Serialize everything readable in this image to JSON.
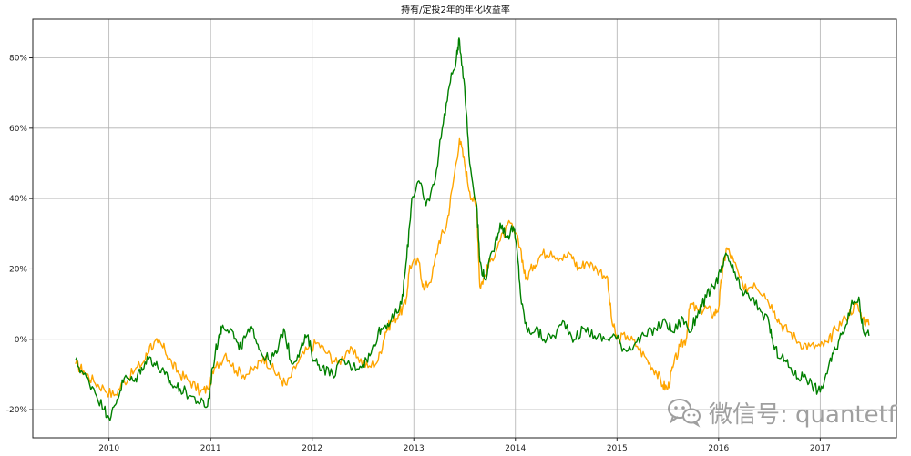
{
  "chart_data": {
    "type": "line",
    "title": "持有/定投2年的年化收益率",
    "xlabel": "",
    "ylabel": "",
    "xlim": [
      2009.25,
      2017.75
    ],
    "ylim": [
      -28,
      91
    ],
    "x_ticks": [
      2010,
      2011,
      2012,
      2013,
      2014,
      2015,
      2016,
      2017
    ],
    "x_tick_labels": [
      "2010",
      "2011",
      "2012",
      "2013",
      "2014",
      "2015",
      "2016",
      "2017"
    ],
    "y_ticks": [
      -20,
      0,
      20,
      40,
      60,
      80
    ],
    "y_tick_labels": [
      "-20%",
      "0%",
      "20%",
      "40%",
      "60%",
      "80%"
    ],
    "grid": true,
    "legend": "none",
    "series": [
      {
        "color": "#ffa500",
        "points": [
          [
            2009.67,
            -7
          ],
          [
            2009.75,
            -9
          ],
          [
            2009.85,
            -12
          ],
          [
            2009.95,
            -14
          ],
          [
            2010.05,
            -16
          ],
          [
            2010.15,
            -12
          ],
          [
            2010.25,
            -9
          ],
          [
            2010.35,
            -6
          ],
          [
            2010.4,
            -2
          ],
          [
            2010.48,
            -1
          ],
          [
            2010.55,
            -3
          ],
          [
            2010.62,
            -7
          ],
          [
            2010.7,
            -10
          ],
          [
            2010.8,
            -12
          ],
          [
            2010.9,
            -15
          ],
          [
            2010.97,
            -14
          ],
          [
            2011.05,
            -8
          ],
          [
            2011.15,
            -4
          ],
          [
            2011.25,
            -9
          ],
          [
            2011.35,
            -10
          ],
          [
            2011.45,
            -8
          ],
          [
            2011.52,
            -5
          ],
          [
            2011.6,
            -8
          ],
          [
            2011.68,
            -11
          ],
          [
            2011.75,
            -13
          ],
          [
            2011.85,
            -7
          ],
          [
            2011.95,
            -3
          ],
          [
            2012.05,
            -1
          ],
          [
            2012.15,
            -4
          ],
          [
            2012.25,
            -7
          ],
          [
            2012.35,
            -3
          ],
          [
            2012.45,
            -5
          ],
          [
            2012.55,
            -8
          ],
          [
            2012.65,
            -6
          ],
          [
            2012.72,
            2
          ],
          [
            2012.78,
            5
          ],
          [
            2012.85,
            7
          ],
          [
            2012.92,
            10
          ],
          [
            2012.96,
            21
          ],
          [
            2013.05,
            22
          ],
          [
            2013.1,
            14
          ],
          [
            2013.18,
            18
          ],
          [
            2013.25,
            28
          ],
          [
            2013.32,
            32
          ],
          [
            2013.38,
            43
          ],
          [
            2013.45,
            57
          ],
          [
            2013.5,
            50
          ],
          [
            2013.55,
            42
          ],
          [
            2013.62,
            37
          ],
          [
            2013.65,
            15
          ],
          [
            2013.7,
            18
          ],
          [
            2013.75,
            22
          ],
          [
            2013.85,
            28
          ],
          [
            2013.95,
            33
          ],
          [
            2014.05,
            26
          ],
          [
            2014.1,
            17
          ],
          [
            2014.18,
            21
          ],
          [
            2014.25,
            24
          ],
          [
            2014.35,
            25
          ],
          [
            2014.45,
            23
          ],
          [
            2014.55,
            24
          ],
          [
            2014.62,
            20
          ],
          [
            2014.7,
            22
          ],
          [
            2014.8,
            20
          ],
          [
            2014.9,
            18
          ],
          [
            2014.95,
            5
          ],
          [
            2015.0,
            0
          ],
          [
            2015.1,
            1
          ],
          [
            2015.2,
            -2
          ],
          [
            2015.3,
            -6
          ],
          [
            2015.38,
            -9
          ],
          [
            2015.45,
            -13
          ],
          [
            2015.5,
            -14
          ],
          [
            2015.55,
            -8
          ],
          [
            2015.62,
            -2
          ],
          [
            2015.68,
            0
          ],
          [
            2015.72,
            10
          ],
          [
            2015.8,
            8
          ],
          [
            2015.88,
            9
          ],
          [
            2015.95,
            7
          ],
          [
            2016.0,
            9
          ],
          [
            2016.04,
            20
          ],
          [
            2016.08,
            26
          ],
          [
            2016.15,
            22
          ],
          [
            2016.25,
            14
          ],
          [
            2016.35,
            16
          ],
          [
            2016.45,
            13
          ],
          [
            2016.55,
            8
          ],
          [
            2016.62,
            4
          ],
          [
            2016.7,
            2
          ],
          [
            2016.8,
            -1
          ],
          [
            2016.9,
            -2
          ],
          [
            2017.0,
            -2
          ],
          [
            2017.08,
            -1
          ],
          [
            2017.15,
            3
          ],
          [
            2017.25,
            6
          ],
          [
            2017.35,
            10
          ],
          [
            2017.42,
            6
          ],
          [
            2017.48,
            4
          ]
        ]
      },
      {
        "color": "#008000",
        "points": [
          [
            2009.67,
            -6
          ],
          [
            2009.75,
            -10
          ],
          [
            2009.85,
            -14
          ],
          [
            2009.95,
            -20
          ],
          [
            2010.02,
            -22
          ],
          [
            2010.08,
            -17
          ],
          [
            2010.15,
            -11
          ],
          [
            2010.25,
            -12
          ],
          [
            2010.32,
            -8
          ],
          [
            2010.4,
            -5
          ],
          [
            2010.48,
            -8
          ],
          [
            2010.55,
            -10
          ],
          [
            2010.62,
            -13
          ],
          [
            2010.7,
            -14
          ],
          [
            2010.8,
            -16
          ],
          [
            2010.9,
            -18
          ],
          [
            2010.97,
            -19
          ],
          [
            2011.02,
            -8
          ],
          [
            2011.08,
            1
          ],
          [
            2011.12,
            4
          ],
          [
            2011.2,
            3
          ],
          [
            2011.28,
            -3
          ],
          [
            2011.35,
            1
          ],
          [
            2011.42,
            3
          ],
          [
            2011.5,
            -4
          ],
          [
            2011.58,
            -6
          ],
          [
            2011.65,
            -4
          ],
          [
            2011.72,
            3
          ],
          [
            2011.8,
            -7
          ],
          [
            2011.88,
            -3
          ],
          [
            2011.95,
            1
          ],
          [
            2012.02,
            -6
          ],
          [
            2012.1,
            -8
          ],
          [
            2012.2,
            -10
          ],
          [
            2012.3,
            -6
          ],
          [
            2012.4,
            -8
          ],
          [
            2012.5,
            -7
          ],
          [
            2012.58,
            -4
          ],
          [
            2012.65,
            2
          ],
          [
            2012.72,
            4
          ],
          [
            2012.8,
            6
          ],
          [
            2012.88,
            10
          ],
          [
            2012.93,
            23
          ],
          [
            2012.98,
            40
          ],
          [
            2013.05,
            45
          ],
          [
            2013.12,
            38
          ],
          [
            2013.2,
            44
          ],
          [
            2013.28,
            60
          ],
          [
            2013.35,
            72
          ],
          [
            2013.42,
            80
          ],
          [
            2013.45,
            85
          ],
          [
            2013.5,
            72
          ],
          [
            2013.55,
            50
          ],
          [
            2013.62,
            38
          ],
          [
            2013.65,
            22
          ],
          [
            2013.7,
            17
          ],
          [
            2013.78,
            25
          ],
          [
            2013.85,
            33
          ],
          [
            2013.92,
            29
          ],
          [
            2013.98,
            32
          ],
          [
            2014.02,
            24
          ],
          [
            2014.06,
            10
          ],
          [
            2014.12,
            2
          ],
          [
            2014.2,
            3
          ],
          [
            2014.28,
            0
          ],
          [
            2014.38,
            1
          ],
          [
            2014.48,
            5
          ],
          [
            2014.58,
            0
          ],
          [
            2014.68,
            3
          ],
          [
            2014.78,
            1
          ],
          [
            2014.88,
            0
          ],
          [
            2014.98,
            1
          ],
          [
            2015.08,
            -3
          ],
          [
            2015.18,
            -1
          ],
          [
            2015.28,
            1
          ],
          [
            2015.38,
            3
          ],
          [
            2015.48,
            5
          ],
          [
            2015.55,
            2
          ],
          [
            2015.65,
            6
          ],
          [
            2015.72,
            2
          ],
          [
            2015.8,
            8
          ],
          [
            2015.88,
            12
          ],
          [
            2015.95,
            15
          ],
          [
            2016.02,
            19
          ],
          [
            2016.08,
            24
          ],
          [
            2016.15,
            19
          ],
          [
            2016.22,
            14
          ],
          [
            2016.3,
            12
          ],
          [
            2016.4,
            9
          ],
          [
            2016.5,
            4
          ],
          [
            2016.55,
            -3
          ],
          [
            2016.62,
            -5
          ],
          [
            2016.7,
            -8
          ],
          [
            2016.78,
            -11
          ],
          [
            2016.85,
            -10
          ],
          [
            2016.92,
            -13
          ],
          [
            2017.0,
            -15
          ],
          [
            2017.08,
            -8
          ],
          [
            2017.15,
            -3
          ],
          [
            2017.22,
            2
          ],
          [
            2017.3,
            9
          ],
          [
            2017.38,
            12
          ],
          [
            2017.42,
            3
          ],
          [
            2017.48,
            1
          ]
        ]
      }
    ]
  },
  "watermark": {
    "text": "微信号: quantetf",
    "icon": "wechat-icon"
  }
}
